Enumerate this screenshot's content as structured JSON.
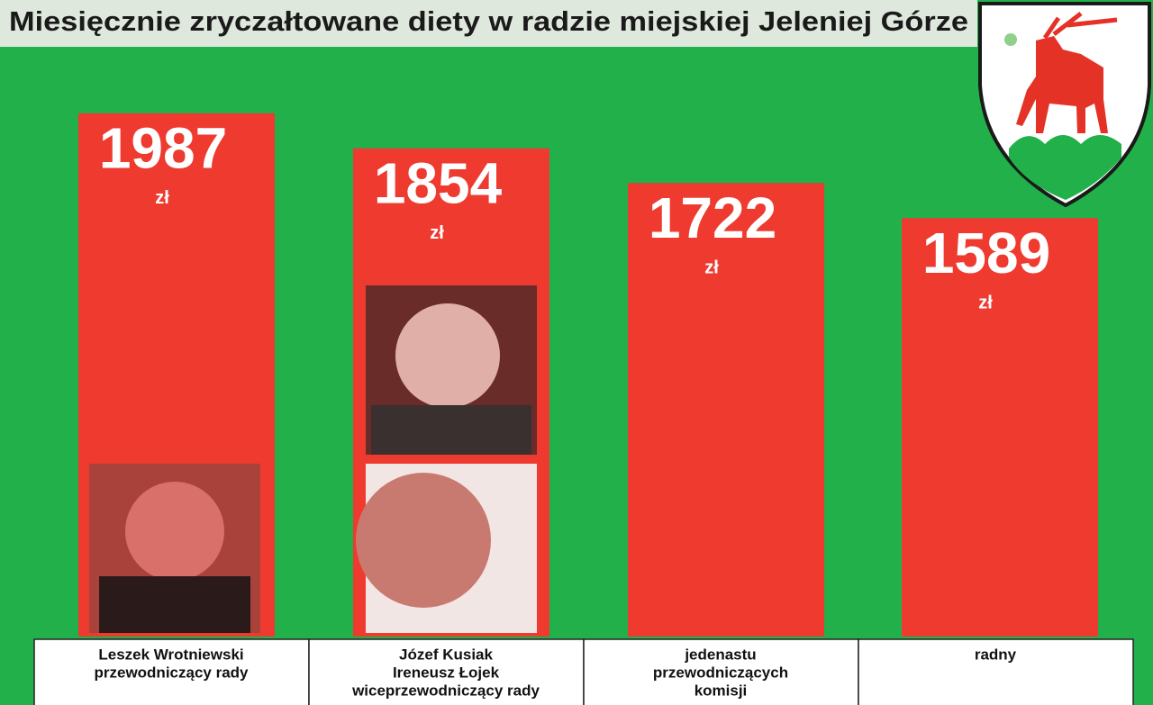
{
  "chart_data": {
    "type": "bar",
    "title": "Miesięcznie zryczałtowane diety w radzie miejskiej Jeleniej Górze",
    "categories": [
      [
        "Leszek Wrotniewski",
        "przewodniczący rady"
      ],
      [
        "Józef Kusiak",
        "Ireneusz Łojek",
        "wiceprzewodniczący rady"
      ],
      [
        "jedenastu",
        "przewodniczących",
        "komisji"
      ],
      [
        "radny"
      ]
    ],
    "values": [
      1987,
      1854,
      1722,
      1589
    ],
    "unit": "zł",
    "color": "#ee3a2f",
    "ylim": [
      0,
      2000
    ]
  }
}
